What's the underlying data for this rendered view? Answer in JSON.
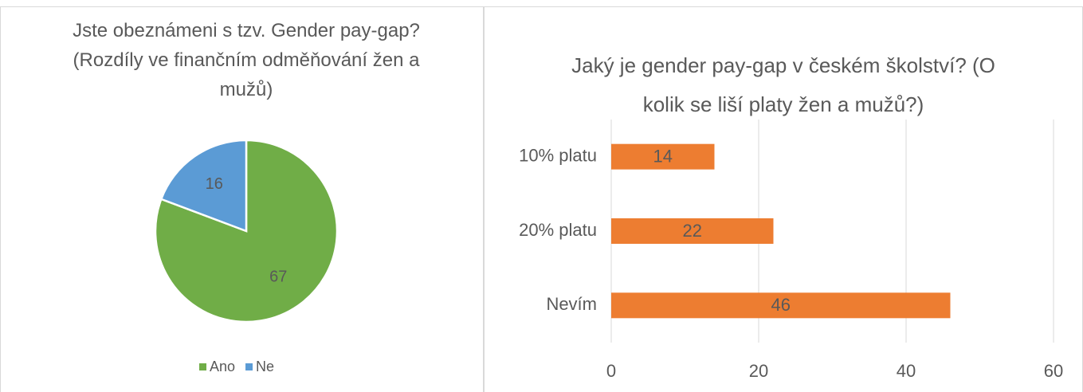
{
  "chart_data": [
    {
      "type": "pie",
      "title": "Jste obeznámeni s tzv. Gender pay-gap? (Rozdíly ve finančním odměňování žen a mužů)",
      "categories": [
        "Ano",
        "Ne"
      ],
      "values": [
        67,
        16
      ],
      "colors": [
        "#70ad47",
        "#5b9bd5"
      ],
      "legend": "bottom"
    },
    {
      "type": "bar",
      "orientation": "horizontal",
      "title": "Jaký je gender pay-gap v českém školství? (O kolik se liší platy žen a mužů?)",
      "categories": [
        "10% platu",
        "20% platu",
        "Nevím"
      ],
      "values": [
        14,
        22,
        46
      ],
      "color": "#ed7d31",
      "xlim": [
        0,
        60
      ],
      "xticks": [
        0,
        20,
        40,
        60
      ],
      "grid": true
    }
  ]
}
